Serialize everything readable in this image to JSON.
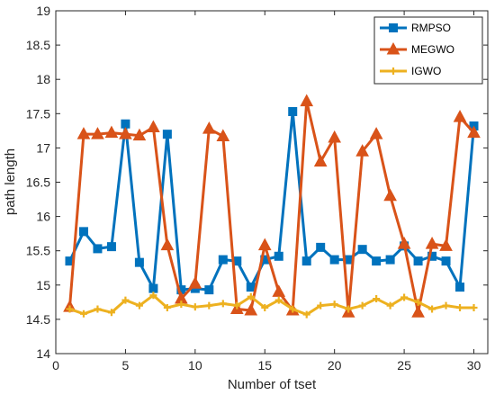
{
  "chart_data": {
    "type": "line",
    "title": "",
    "xlabel": "Number of tset",
    "ylabel": "path length",
    "xlim": [
      0,
      31
    ],
    "ylim": [
      14,
      19
    ],
    "xticks": [
      "0",
      "5",
      "10",
      "15",
      "20",
      "25",
      "30"
    ],
    "yticks": [
      "14",
      "14.5",
      "15",
      "15.5",
      "16",
      "16.5",
      "17",
      "17.5",
      "18",
      "18.5",
      "19"
    ],
    "grid": false,
    "legend_position": "top-right",
    "x": [
      1,
      2,
      3,
      4,
      5,
      6,
      7,
      8,
      9,
      10,
      11,
      12,
      13,
      14,
      15,
      16,
      17,
      18,
      19,
      20,
      21,
      22,
      23,
      24,
      25,
      26,
      27,
      28,
      29,
      30
    ],
    "series": [
      {
        "name": "RMPSO",
        "color": "#0072BD",
        "marker": "square",
        "values": [
          15.35,
          15.78,
          15.53,
          15.56,
          17.35,
          15.33,
          14.95,
          17.2,
          14.93,
          14.95,
          14.93,
          15.37,
          15.35,
          14.97,
          15.37,
          15.42,
          17.53,
          15.35,
          15.55,
          15.37,
          15.37,
          15.52,
          15.35,
          15.37,
          15.57,
          15.35,
          15.42,
          15.35,
          14.97,
          17.32
        ]
      },
      {
        "name": "MEGWO",
        "color": "#D95319",
        "marker": "triangle",
        "values": [
          14.68,
          17.2,
          17.2,
          17.22,
          17.2,
          17.18,
          17.3,
          15.58,
          14.8,
          15.02,
          17.28,
          17.17,
          14.65,
          14.63,
          15.58,
          14.9,
          14.63,
          17.68,
          16.8,
          17.15,
          14.6,
          16.95,
          17.2,
          16.3,
          15.6,
          14.6,
          15.6,
          15.57,
          17.45,
          17.22
        ]
      },
      {
        "name": "IGWO",
        "color": "#EDB120",
        "marker": "plus",
        "values": [
          14.65,
          14.58,
          14.65,
          14.6,
          14.78,
          14.7,
          14.85,
          14.67,
          14.72,
          14.68,
          14.7,
          14.73,
          14.7,
          14.83,
          14.67,
          14.78,
          14.65,
          14.57,
          14.7,
          14.72,
          14.65,
          14.7,
          14.8,
          14.7,
          14.82,
          14.75,
          14.65,
          14.7,
          14.67,
          14.67
        ]
      }
    ]
  }
}
